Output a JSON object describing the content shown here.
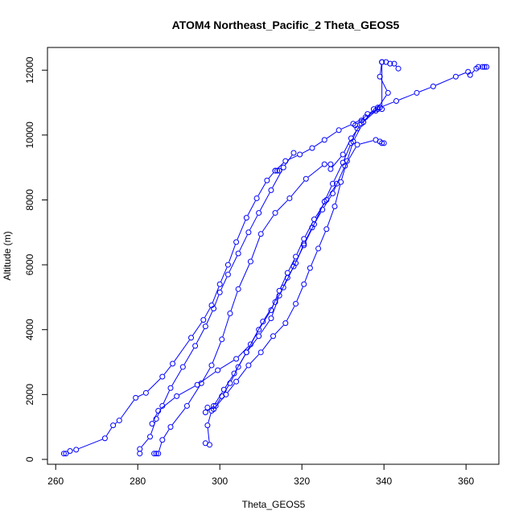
{
  "chart_data": {
    "type": "scatter",
    "title": "ATOM4 Northeast_Pacific_2 Theta_GEOS5",
    "xlabel": "Theta_GEOS5",
    "ylabel": "Altitude (m)",
    "xlim": [
      258,
      368
    ],
    "ylim": [
      -150,
      12700
    ],
    "xticks": [
      260,
      280,
      300,
      320,
      340,
      360
    ],
    "yticks": [
      0,
      2000,
      4000,
      6000,
      8000,
      10000,
      12000
    ],
    "grid": false,
    "legend": "none",
    "color": "#0000ff",
    "series": [
      {
        "points": [
          [
            262,
            180
          ],
          [
            262.5,
            180
          ],
          [
            263.5,
            260
          ],
          [
            265,
            300
          ],
          [
            272,
            650
          ],
          [
            274,
            1050
          ],
          [
            275.5,
            1200
          ],
          [
            279.5,
            1900
          ],
          [
            282,
            2050
          ],
          [
            286,
            2550
          ],
          [
            288.5,
            2950
          ],
          [
            293,
            3750
          ],
          [
            296,
            4300
          ],
          [
            298,
            4750
          ],
          [
            300,
            5400
          ],
          [
            302,
            6000
          ],
          [
            304,
            6700
          ],
          [
            306.5,
            7450
          ],
          [
            309,
            8050
          ],
          [
            311.5,
            8600
          ],
          [
            313.5,
            8900
          ],
          [
            314,
            8900
          ],
          [
            314.5,
            8900
          ]
        ]
      },
      {
        "points": [
          [
            280.5,
            180
          ],
          [
            280.5,
            320
          ],
          [
            283,
            700
          ],
          [
            284.5,
            1250
          ],
          [
            286,
            1650
          ],
          [
            288,
            2200
          ],
          [
            291,
            2850
          ],
          [
            294,
            3500
          ],
          [
            296.5,
            4100
          ],
          [
            298.5,
            4650
          ],
          [
            300,
            5150
          ],
          [
            302,
            5700
          ],
          [
            304.5,
            6350
          ],
          [
            307,
            7000
          ],
          [
            309.5,
            7600
          ],
          [
            312.5,
            8300
          ],
          [
            315.5,
            9000
          ],
          [
            318,
            9450
          ]
        ]
      },
      {
        "points": [
          [
            284,
            180
          ],
          [
            284.5,
            180
          ],
          [
            285,
            180
          ],
          [
            286,
            600
          ],
          [
            288,
            1000
          ],
          [
            292,
            1650
          ],
          [
            295.5,
            2350
          ],
          [
            298,
            2900
          ],
          [
            300.5,
            3700
          ],
          [
            302.5,
            4500
          ],
          [
            304.5,
            5250
          ],
          [
            307.5,
            6100
          ],
          [
            310,
            6950
          ],
          [
            313.5,
            7600
          ],
          [
            317,
            8050
          ],
          [
            321,
            8650
          ],
          [
            325.5,
            9100
          ],
          [
            327,
            9100
          ]
        ]
      },
      {
        "points": [
          [
            296.5,
            500
          ],
          [
            297.5,
            450
          ],
          [
            297,
            1050
          ],
          [
            298,
            1500
          ],
          [
            299,
            1650
          ],
          [
            300.5,
            1950
          ],
          [
            302.5,
            2350
          ],
          [
            304.5,
            2850
          ],
          [
            306.5,
            3300
          ],
          [
            309.5,
            4000
          ],
          [
            312.5,
            4600
          ],
          [
            314.5,
            5200
          ],
          [
            316.5,
            5750
          ],
          [
            318.5,
            6250
          ],
          [
            320.5,
            6800
          ],
          [
            323,
            7400
          ],
          [
            326,
            8000
          ],
          [
            328.5,
            8500
          ]
        ]
      },
      {
        "points": [
          [
            283.5,
            1100
          ],
          [
            285,
            1500
          ],
          [
            289.5,
            1950
          ],
          [
            294.5,
            2300
          ],
          [
            299.5,
            2750
          ],
          [
            304,
            3100
          ],
          [
            307.5,
            3550
          ],
          [
            310.5,
            4250
          ],
          [
            313.5,
            4850
          ],
          [
            315.5,
            5300
          ],
          [
            318,
            5950
          ],
          [
            320.5,
            6600
          ],
          [
            323,
            7250
          ],
          [
            325.5,
            7950
          ],
          [
            327.5,
            8500
          ],
          [
            330,
            9150
          ],
          [
            332,
            9750
          ],
          [
            333.5,
            10200
          ]
        ]
      },
      {
        "points": [
          [
            297,
            1600
          ],
          [
            298.5,
            1550
          ],
          [
            301.5,
            2000
          ],
          [
            304,
            2400
          ],
          [
            307,
            2900
          ],
          [
            310,
            3300
          ],
          [
            313,
            3800
          ],
          [
            316,
            4200
          ],
          [
            318.5,
            4800
          ],
          [
            320.5,
            5400
          ],
          [
            322,
            5900
          ],
          [
            324,
            6500
          ],
          [
            326,
            7100
          ],
          [
            328,
            7800
          ],
          [
            329.5,
            8550
          ],
          [
            331,
            9200
          ],
          [
            332.5,
            9800
          ],
          [
            335,
            10400
          ],
          [
            337.5,
            10800
          ],
          [
            338.5,
            10850
          ]
        ]
      },
      {
        "points": [
          [
            296.5,
            1450
          ],
          [
            298.5,
            1650
          ],
          [
            301,
            2150
          ],
          [
            303.5,
            2650
          ],
          [
            306.5,
            3300
          ],
          [
            309.5,
            3800
          ],
          [
            312.5,
            4350
          ],
          [
            314.5,
            5050
          ],
          [
            316.5,
            5600
          ],
          [
            318.5,
            6050
          ],
          [
            320.5,
            6650
          ],
          [
            322.5,
            7150
          ],
          [
            325,
            7700
          ],
          [
            327.5,
            8200
          ],
          [
            330.5,
            9050
          ],
          [
            333.5,
            9700
          ],
          [
            338,
            9850
          ],
          [
            339,
            9800
          ],
          [
            339.5,
            9750
          ],
          [
            340,
            9750
          ]
        ]
      },
      {
        "points": [
          [
            313.5,
            8900
          ],
          [
            316,
            9200
          ],
          [
            319.5,
            9400
          ],
          [
            322.5,
            9600
          ],
          [
            325.5,
            9850
          ],
          [
            329,
            10150
          ],
          [
            332.5,
            10350
          ],
          [
            335.5,
            10550
          ],
          [
            338,
            10750
          ],
          [
            341,
            11300
          ],
          [
            339,
            11800
          ],
          [
            339.5,
            12250
          ],
          [
            340.5,
            12250
          ],
          [
            341.5,
            12200
          ],
          [
            342.5,
            12200
          ],
          [
            343.5,
            12050
          ]
        ]
      },
      {
        "points": [
          [
            327,
            8950
          ],
          [
            330,
            9400
          ],
          [
            332,
            9900
          ],
          [
            334.5,
            10350
          ],
          [
            339,
            10850
          ],
          [
            343,
            11050
          ],
          [
            348,
            11300
          ],
          [
            352,
            11500
          ],
          [
            357.5,
            11800
          ],
          [
            360.5,
            11950
          ],
          [
            361,
            11850
          ],
          [
            362.5,
            12050
          ],
          [
            363,
            12100
          ],
          [
            364,
            12100
          ],
          [
            364.5,
            12100
          ],
          [
            365,
            12100
          ]
        ]
      },
      {
        "points": [
          [
            333,
            10300
          ],
          [
            334.5,
            10450
          ],
          [
            336,
            10650
          ],
          [
            338.5,
            10800
          ],
          [
            339,
            10850
          ],
          [
            339.5,
            10800
          ],
          [
            339.5,
            12250
          ]
        ]
      }
    ]
  }
}
